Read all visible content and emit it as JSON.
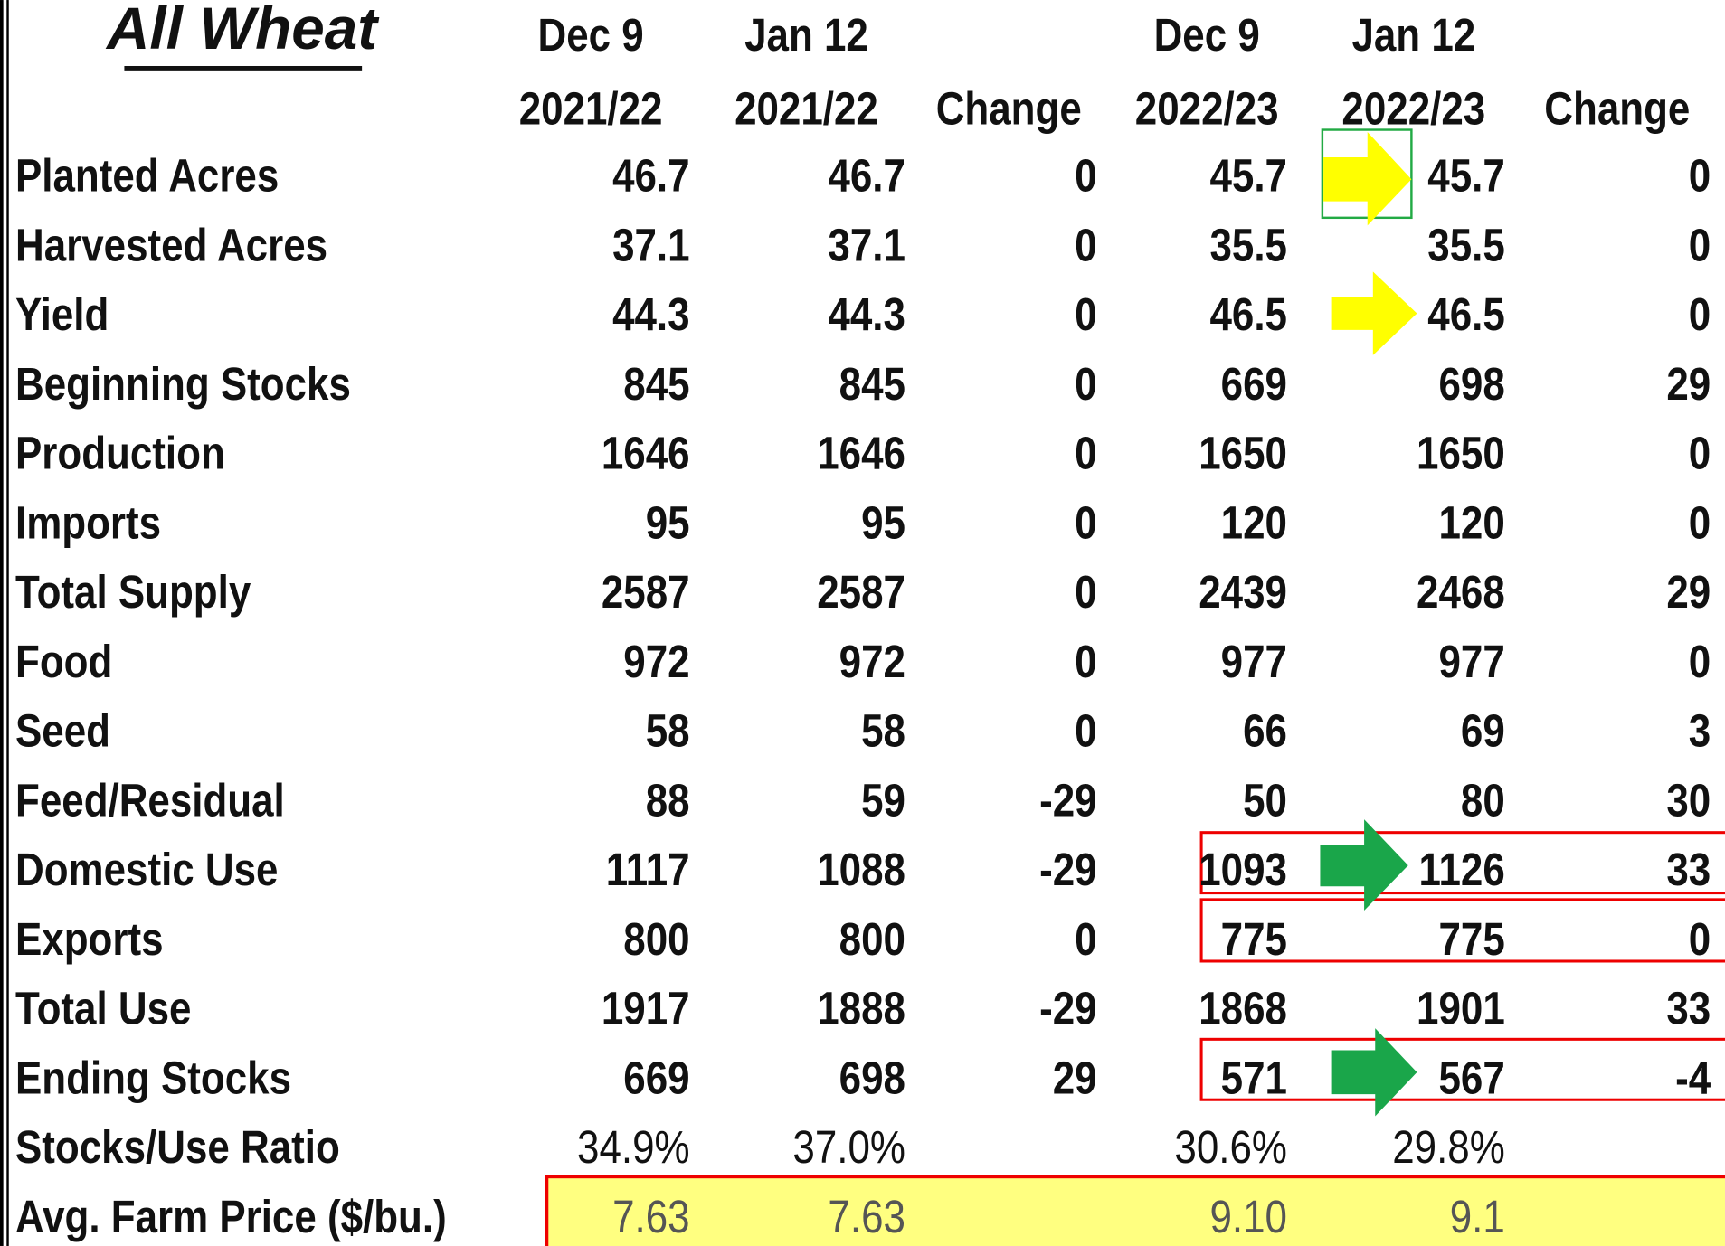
{
  "table": {
    "title": "All Wheat",
    "header_top": [
      {
        "col": 0,
        "text": "Dec 9"
      },
      {
        "col": 1,
        "text": "Jan 12"
      },
      {
        "col": 3,
        "text": "Dec 9"
      },
      {
        "col": 4,
        "text": "Jan 12"
      }
    ],
    "header_bottom": [
      "2021/22",
      "2021/22",
      "Change",
      "2022/23",
      "2022/23",
      "Change"
    ],
    "rows": [
      {
        "label": "Planted Acres",
        "cells": [
          "46.7",
          "46.7",
          "0",
          "45.7",
          "45.7",
          "0"
        ]
      },
      {
        "label": "Harvested Acres",
        "cells": [
          "37.1",
          "37.1",
          "0",
          "35.5",
          "35.5",
          "0"
        ]
      },
      {
        "label": "Yield",
        "cells": [
          "44.3",
          "44.3",
          "0",
          "46.5",
          "46.5",
          "0"
        ]
      },
      {
        "label": "Beginning Stocks",
        "cells": [
          "845",
          "845",
          "0",
          "669",
          "698",
          "29"
        ]
      },
      {
        "label": "Production",
        "cells": [
          "1646",
          "1646",
          "0",
          "1650",
          "1650",
          "0"
        ]
      },
      {
        "label": "Imports",
        "cells": [
          "95",
          "95",
          "0",
          "120",
          "120",
          "0"
        ]
      },
      {
        "label": "Total Supply",
        "cells": [
          "2587",
          "2587",
          "0",
          "2439",
          "2468",
          "29"
        ]
      },
      {
        "label": "Food",
        "cells": [
          "972",
          "972",
          "0",
          "977",
          "977",
          "0"
        ]
      },
      {
        "label": "Seed",
        "cells": [
          "58",
          "58",
          "0",
          "66",
          "69",
          "3"
        ]
      },
      {
        "label": "Feed/Residual",
        "cells": [
          "88",
          "59",
          "-29",
          "50",
          "80",
          "30"
        ]
      },
      {
        "label": "Domestic Use",
        "cells": [
          "1117",
          "1088",
          "-29",
          "1093",
          "1126",
          "33"
        ]
      },
      {
        "label": "Exports",
        "cells": [
          "800",
          "800",
          "0",
          "775",
          "775",
          "0"
        ]
      },
      {
        "label": "Total Use",
        "cells": [
          "1917",
          "1888",
          "-29",
          "1868",
          "1901",
          "33"
        ]
      },
      {
        "label": "Ending Stocks",
        "cells": [
          "669",
          "698",
          "29",
          "571",
          "567",
          "-4"
        ]
      },
      {
        "label": "Stocks/Use Ratio",
        "cells": [
          "34.9%",
          "37.0%",
          null,
          "30.6%",
          "29.8%",
          null
        ]
      },
      {
        "label": "Avg. Farm Price ($/bu.)",
        "cells": [
          "7.63",
          "7.63",
          null,
          "9.10",
          "9.1",
          null
        ]
      }
    ]
  }
}
